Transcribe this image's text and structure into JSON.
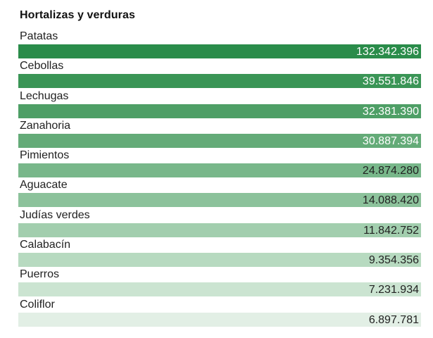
{
  "chart_data": {
    "type": "table",
    "title": "Hortalizas y verduras",
    "categories": [
      "Patatas",
      "Cebollas",
      "Lechugas",
      "Zanahoria",
      "Pimientos",
      "Aguacate",
      "Judías verdes",
      "Calabacín",
      "Puerros",
      "Coliflor"
    ],
    "values": [
      132342396,
      39551846,
      32381390,
      30887394,
      24874280,
      14088420,
      11842752,
      9354356,
      7231934,
      6897781
    ],
    "value_labels": [
      "132.342.396",
      "39.551.846",
      "32.381.390",
      "30.887.394",
      "24.874.280",
      "14.088.420",
      "11.842.752",
      "9.354.356",
      "7.231.934",
      "6.897.781"
    ],
    "bar_colors": [
      "#2a8c4a",
      "#3a9556",
      "#4e9f66",
      "#64ab78",
      "#78b78a",
      "#8cc29b",
      "#a2ceae",
      "#b7dac0",
      "#cbe4d1",
      "#e2efe5"
    ],
    "value_colors": [
      "#ffffff",
      "#ffffff",
      "#ffffff",
      "#ffffff",
      "#222222",
      "#222222",
      "#222222",
      "#222222",
      "#222222",
      "#222222"
    ]
  }
}
